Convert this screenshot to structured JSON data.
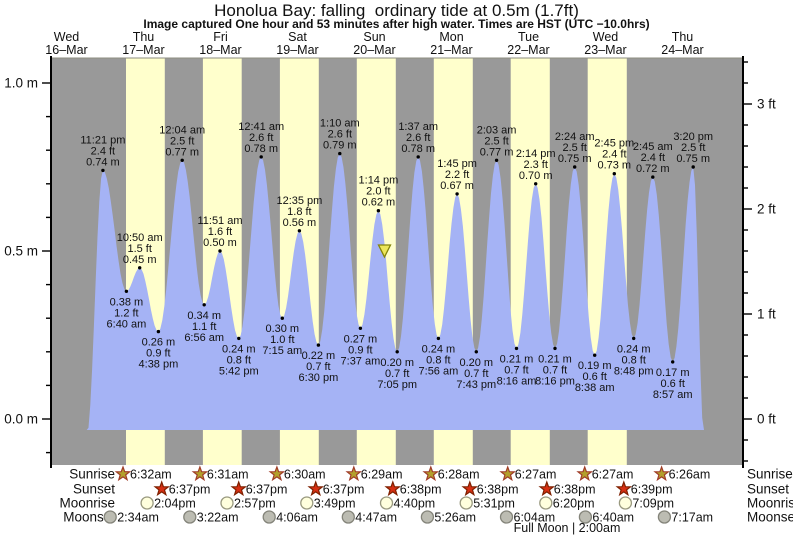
{
  "title": "Honolua Bay: falling  ordinary tide at 0.5m (1.7ft)",
  "subtitle": "Image captured One hour and 53 minutes after high water. Times are HST (UTC −10.0hrs)",
  "days": [
    {
      "name": "Wed",
      "date": "16–Mar"
    },
    {
      "name": "Thu",
      "date": "17–Mar"
    },
    {
      "name": "Fri",
      "date": "18–Mar"
    },
    {
      "name": "Sat",
      "date": "19–Mar"
    },
    {
      "name": "Sun",
      "date": "20–Mar"
    },
    {
      "name": "Mon",
      "date": "21–Mar"
    },
    {
      "name": "Tue",
      "date": "22–Mar"
    },
    {
      "name": "Wed",
      "date": "23–Mar"
    },
    {
      "name": "Thu",
      "date": "24–Mar"
    }
  ],
  "chart_data": {
    "type": "area",
    "title": "Honolua Bay: falling ordinary tide at 0.5m (1.7ft)",
    "x_axis": "time, Wed 16-Mar to Thu 24-Mar (HST)",
    "ylabel_left": "metres",
    "ylabel_right": "feet",
    "ylim_m": [
      -0.14,
      1.07
    ],
    "y_ticks_left": [
      {
        "m": 0.0,
        "label": "0.0 m"
      },
      {
        "m": 0.5,
        "label": "0.5 m"
      },
      {
        "m": 1.0,
        "label": "1.0 m"
      }
    ],
    "y_ticks_right": [
      {
        "ft": 0,
        "label": "0 ft"
      },
      {
        "ft": 1,
        "label": "1 ft"
      },
      {
        "ft": 2,
        "label": "2 ft"
      },
      {
        "ft": 3,
        "label": "3 ft"
      }
    ],
    "time_origin": "Wed 16-Mar 00:00",
    "tide_events": [
      {
        "kind": "high",
        "time": "11:21 pm",
        "t": 23.35,
        "m": 0.74,
        "ft_label": "2.4 ft",
        "m_label": "0.74 m"
      },
      {
        "kind": "low",
        "time": "6:40 am",
        "t": 30.67,
        "m": 0.38,
        "ft_label": "1.2 ft",
        "m_label": "0.38 m"
      },
      {
        "kind": "high",
        "time": "10:50 am",
        "t": 34.83,
        "m": 0.45,
        "ft_label": "1.5 ft",
        "m_label": "0.45 m"
      },
      {
        "kind": "low",
        "time": "4:38 pm",
        "t": 40.63,
        "m": 0.26,
        "ft_label": "0.9 ft",
        "m_label": "0.26 m"
      },
      {
        "kind": "high",
        "time": "12:04 am",
        "t": 48.07,
        "m": 0.77,
        "ft_label": "2.5 ft",
        "m_label": "0.77 m"
      },
      {
        "kind": "low",
        "time": "6:56 am",
        "t": 54.93,
        "m": 0.34,
        "ft_label": "1.1 ft",
        "m_label": "0.34 m"
      },
      {
        "kind": "high",
        "time": "11:51 am",
        "t": 59.85,
        "m": 0.5,
        "ft_label": "1.6 ft",
        "m_label": "0.50 m"
      },
      {
        "kind": "low",
        "time": "5:42 pm",
        "t": 65.7,
        "m": 0.24,
        "ft_label": "0.8 ft",
        "m_label": "0.24 m"
      },
      {
        "kind": "high",
        "time": "12:41 am",
        "t": 72.68,
        "m": 0.78,
        "ft_label": "2.6 ft",
        "m_label": "0.78 m"
      },
      {
        "kind": "low",
        "time": "7:15 am",
        "t": 79.25,
        "m": 0.3,
        "ft_label": "1.0 ft",
        "m_label": "0.30 m"
      },
      {
        "kind": "high",
        "time": "12:35 pm",
        "t": 84.58,
        "m": 0.56,
        "ft_label": "1.8 ft",
        "m_label": "0.56 m"
      },
      {
        "kind": "low",
        "time": "6:30 pm",
        "t": 90.5,
        "m": 0.22,
        "ft_label": "0.7 ft",
        "m_label": "0.22 m"
      },
      {
        "kind": "high",
        "time": "1:10 am",
        "t": 97.17,
        "m": 0.79,
        "ft_label": "2.6 ft",
        "m_label": "0.79 m"
      },
      {
        "kind": "low",
        "time": "7:37 am",
        "t": 103.62,
        "m": 0.27,
        "ft_label": "0.9 ft",
        "m_label": "0.27 m"
      },
      {
        "kind": "high",
        "time": "1:14 pm",
        "t": 109.23,
        "m": 0.62,
        "ft_label": "2.0 ft",
        "m_label": "0.62 m"
      },
      {
        "kind": "low",
        "time": "7:05 pm",
        "t": 115.08,
        "m": 0.2,
        "ft_label": "0.7 ft",
        "m_label": "0.20 m"
      },
      {
        "kind": "high",
        "time": "1:37 am",
        "t": 121.62,
        "m": 0.78,
        "ft_label": "2.6 ft",
        "m_label": "0.78 m"
      },
      {
        "kind": "low",
        "time": "7:56 am",
        "t": 127.93,
        "m": 0.24,
        "ft_label": "0.8 ft",
        "m_label": "0.24 m"
      },
      {
        "kind": "high",
        "time": "1:45 pm",
        "t": 133.75,
        "m": 0.67,
        "ft_label": "2.2 ft",
        "m_label": "0.67 m"
      },
      {
        "kind": "low",
        "time": "7:43 pm",
        "t": 139.72,
        "m": 0.2,
        "ft_label": "0.7 ft",
        "m_label": "0.20 m"
      },
      {
        "kind": "high",
        "time": "2:03 am",
        "t": 146.05,
        "m": 0.77,
        "ft_label": "2.5 ft",
        "m_label": "0.77 m"
      },
      {
        "kind": "low",
        "time": "8:16 am",
        "t": 152.27,
        "m": 0.21,
        "ft_label": "0.7 ft",
        "m_label": "0.21 m"
      },
      {
        "kind": "high",
        "time": "2:14 pm",
        "t": 158.23,
        "m": 0.7,
        "ft_label": "2.3 ft",
        "m_label": "0.70 m"
      },
      {
        "kind": "low",
        "time": "8:16 pm",
        "t": 164.27,
        "m": 0.21,
        "ft_label": "0.7 ft",
        "m_label": "0.21 m"
      },
      {
        "kind": "high",
        "time": "2:24 am",
        "t": 170.4,
        "m": 0.75,
        "ft_label": "2.5 ft",
        "m_label": "0.75 m"
      },
      {
        "kind": "low",
        "time": "8:38 am",
        "t": 176.63,
        "m": 0.19,
        "ft_label": "0.6 ft",
        "m_label": "0.19 m"
      },
      {
        "kind": "high",
        "time": "2:45 pm",
        "t": 182.75,
        "m": 0.73,
        "ft_label": "2.4 ft",
        "m_label": "0.73 m"
      },
      {
        "kind": "low",
        "time": "8:48 pm",
        "t": 188.8,
        "m": 0.24,
        "ft_label": "0.8 ft",
        "m_label": "0.24 m"
      },
      {
        "kind": "high",
        "time": "2:45 am",
        "t": 194.75,
        "m": 0.72,
        "ft_label": "2.4 ft",
        "m_label": "0.72 m"
      },
      {
        "kind": "low",
        "time": "8:57 am",
        "t": 200.95,
        "m": 0.17,
        "ft_label": "0.6 ft",
        "m_label": "0.17 m"
      },
      {
        "kind": "high",
        "time": "3:20 pm",
        "t": 207.33,
        "m": 0.75,
        "ft_label": "2.5 ft",
        "m_label": "0.75 m"
      }
    ],
    "now_marker": {
      "t": 111.12,
      "m": 0.5,
      "meaning": "current tide level 0.5m, falling"
    },
    "curve_start_t": 18.3,
    "curve_end_t": 210.7
  },
  "astro": {
    "rows": [
      {
        "id": "sunrise",
        "label": "Sunrise",
        "icon": "sunrise-star",
        "events": [
          {
            "time": "6:32am",
            "t": 30.53
          },
          {
            "time": "6:31am",
            "t": 54.52
          },
          {
            "time": "6:30am",
            "t": 78.5
          },
          {
            "time": "6:29am",
            "t": 102.48
          },
          {
            "time": "6:28am",
            "t": 126.47
          },
          {
            "time": "6:27am",
            "t": 150.45
          },
          {
            "time": "6:27am",
            "t": 174.45
          },
          {
            "time": "6:26am",
            "t": 198.43
          }
        ]
      },
      {
        "id": "sunset",
        "label": "Sunset",
        "icon": "sunset-star",
        "events": [
          {
            "time": "6:37pm",
            "t": 42.62
          },
          {
            "time": "6:37pm",
            "t": 66.62
          },
          {
            "time": "6:37pm",
            "t": 90.62
          },
          {
            "time": "6:38pm",
            "t": 114.63
          },
          {
            "time": "6:38pm",
            "t": 138.63
          },
          {
            "time": "6:38pm",
            "t": 162.63
          },
          {
            "time": "6:39pm",
            "t": 186.65
          }
        ]
      },
      {
        "id": "moonrise",
        "label": "Moonrise",
        "icon": "moonrise-circle",
        "events": [
          {
            "time": "2:04pm",
            "t": 38.07
          },
          {
            "time": "2:57pm",
            "t": 62.95
          },
          {
            "time": "3:49pm",
            "t": 87.82
          },
          {
            "time": "4:40pm",
            "t": 112.67
          },
          {
            "time": "5:31pm",
            "t": 137.52
          },
          {
            "time": "6:20pm",
            "t": 162.33
          },
          {
            "time": "7:09pm",
            "t": 187.15
          }
        ]
      },
      {
        "id": "moonset",
        "label": "Moonset",
        "icon": "moonset-circle",
        "events": [
          {
            "time": "2:34am",
            "t": 26.57
          },
          {
            "time": "3:22am",
            "t": 51.37
          },
          {
            "time": "4:06am",
            "t": 76.1
          },
          {
            "time": "4:47am",
            "t": 100.78
          },
          {
            "time": "5:26am",
            "t": 125.43
          },
          {
            "time": "6:04am",
            "t": 150.07
          },
          {
            "time": "6:40am",
            "t": 174.67
          },
          {
            "time": "7:17am",
            "t": 199.28
          }
        ]
      }
    ],
    "footnote": "Full Moon | 2:00am"
  },
  "colors": {
    "night_band": "#999999",
    "day_band": "#ffffcc",
    "water": "#a5b3f5",
    "day_label": "#e53535",
    "axis": "#000000",
    "sunrise_star_fill": "#b3a02c",
    "sunrise_star_stroke": "#a03c28",
    "sunset_star_fill": "#d62f12",
    "sunset_star_stroke": "#7e2000",
    "moonrise_fill": "#ffffdd",
    "moonrise_stroke": "#99997f",
    "moonset_fill": "#bcbcb2",
    "moonset_stroke": "#84847a",
    "now_marker_fill": "#ece65a",
    "now_marker_stroke": "#85850a"
  }
}
